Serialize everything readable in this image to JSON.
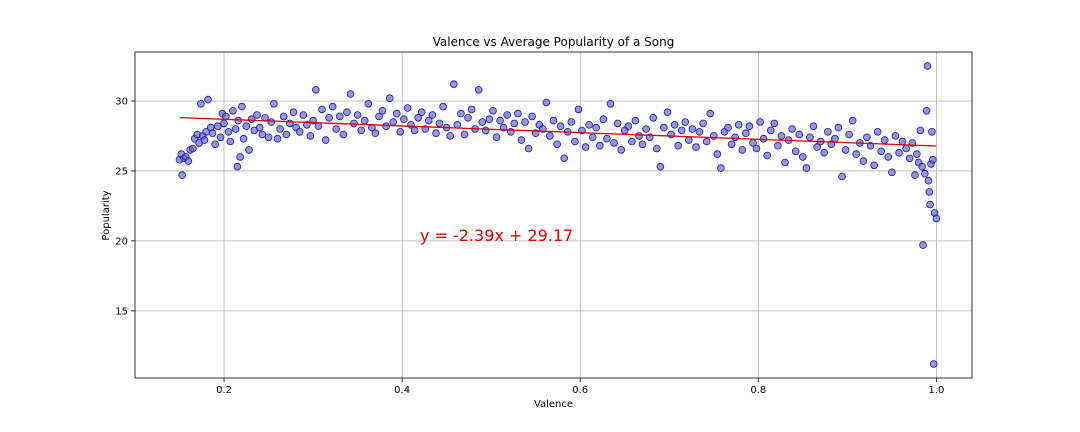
{
  "chart_data": {
    "type": "scatter",
    "title": "Valence vs Average Popularity of a Song",
    "xlabel": "Valence",
    "ylabel": "Popularity",
    "xlim": [
      0.1,
      1.04
    ],
    "ylim": [
      10.2,
      33.5
    ],
    "xticks": [
      0.2,
      0.4,
      0.6,
      0.8,
      1.0
    ],
    "xtick_labels": [
      "0.2",
      "0.4",
      "0.6",
      "0.8",
      "1.0"
    ],
    "yticks": [
      15,
      20,
      25,
      30
    ],
    "ytick_labels": [
      "15",
      "20",
      "25",
      "30"
    ],
    "grid": true,
    "marker_color": "#6666e0",
    "marker_edge_color": "#1a1a8c",
    "trend_color": "#e00000",
    "trendline": {
      "slope": -2.39,
      "intercept": 29.17,
      "x_range": [
        0.15,
        1.0
      ],
      "equation": "y = -2.39x + 29.17",
      "label_x": 0.42,
      "label_y": 20.0
    },
    "series": [
      {
        "points": [
          [
            0.15,
            25.8
          ],
          [
            0.152,
            26.2
          ],
          [
            0.153,
            24.7
          ],
          [
            0.155,
            25.9
          ],
          [
            0.157,
            26.0
          ],
          [
            0.16,
            25.7
          ],
          [
            0.162,
            26.5
          ],
          [
            0.165,
            26.6
          ],
          [
            0.167,
            27.3
          ],
          [
            0.17,
            27.6
          ],
          [
            0.172,
            27.0
          ],
          [
            0.174,
            29.8
          ],
          [
            0.176,
            27.5
          ],
          [
            0.178,
            27.2
          ],
          [
            0.18,
            27.8
          ],
          [
            0.182,
            30.1
          ],
          [
            0.185,
            28.1
          ],
          [
            0.187,
            27.7
          ],
          [
            0.19,
            26.9
          ],
          [
            0.193,
            28.2
          ],
          [
            0.196,
            27.4
          ],
          [
            0.198,
            29.1
          ],
          [
            0.2,
            28.4
          ],
          [
            0.202,
            28.9
          ],
          [
            0.205,
            27.8
          ],
          [
            0.207,
            27.1
          ],
          [
            0.21,
            29.3
          ],
          [
            0.213,
            28.0
          ],
          [
            0.215,
            25.3
          ],
          [
            0.216,
            28.6
          ],
          [
            0.218,
            26.0
          ],
          [
            0.22,
            29.6
          ],
          [
            0.222,
            27.3
          ],
          [
            0.225,
            28.2
          ],
          [
            0.228,
            26.5
          ],
          [
            0.231,
            28.7
          ],
          [
            0.234,
            27.9
          ],
          [
            0.237,
            29.0
          ],
          [
            0.24,
            28.1
          ],
          [
            0.243,
            27.6
          ],
          [
            0.246,
            28.8
          ],
          [
            0.25,
            27.4
          ],
          [
            0.253,
            28.5
          ],
          [
            0.256,
            29.8
          ],
          [
            0.26,
            27.3
          ],
          [
            0.263,
            28.0
          ],
          [
            0.267,
            28.9
          ],
          [
            0.27,
            27.6
          ],
          [
            0.274,
            28.4
          ],
          [
            0.278,
            29.2
          ],
          [
            0.281,
            28.1
          ],
          [
            0.285,
            27.8
          ],
          [
            0.289,
            29.0
          ],
          [
            0.293,
            28.3
          ],
          [
            0.297,
            27.5
          ],
          [
            0.3,
            28.6
          ],
          [
            0.303,
            30.8
          ],
          [
            0.306,
            28.2
          ],
          [
            0.31,
            29.4
          ],
          [
            0.314,
            27.2
          ],
          [
            0.318,
            28.8
          ],
          [
            0.322,
            29.6
          ],
          [
            0.326,
            28.0
          ],
          [
            0.33,
            28.9
          ],
          [
            0.334,
            27.6
          ],
          [
            0.338,
            29.2
          ],
          [
            0.342,
            30.5
          ],
          [
            0.346,
            28.4
          ],
          [
            0.35,
            29.0
          ],
          [
            0.354,
            27.9
          ],
          [
            0.358,
            28.6
          ],
          [
            0.362,
            29.8
          ],
          [
            0.366,
            28.1
          ],
          [
            0.37,
            27.7
          ],
          [
            0.374,
            28.9
          ],
          [
            0.378,
            29.3
          ],
          [
            0.382,
            28.2
          ],
          [
            0.386,
            30.2
          ],
          [
            0.39,
            28.5
          ],
          [
            0.394,
            29.1
          ],
          [
            0.398,
            27.8
          ],
          [
            0.402,
            28.7
          ],
          [
            0.406,
            29.5
          ],
          [
            0.41,
            28.3
          ],
          [
            0.414,
            27.9
          ],
          [
            0.418,
            28.8
          ],
          [
            0.422,
            29.2
          ],
          [
            0.426,
            28.0
          ],
          [
            0.43,
            28.6
          ],
          [
            0.434,
            29.0
          ],
          [
            0.438,
            27.7
          ],
          [
            0.442,
            28.4
          ],
          [
            0.446,
            29.6
          ],
          [
            0.45,
            28.1
          ],
          [
            0.454,
            27.5
          ],
          [
            0.458,
            31.2
          ],
          [
            0.462,
            28.3
          ],
          [
            0.466,
            29.1
          ],
          [
            0.47,
            27.6
          ],
          [
            0.474,
            28.8
          ],
          [
            0.478,
            29.4
          ],
          [
            0.482,
            28.0
          ],
          [
            0.486,
            30.8
          ],
          [
            0.49,
            28.5
          ],
          [
            0.494,
            27.9
          ],
          [
            0.498,
            28.7
          ],
          [
            0.502,
            29.3
          ],
          [
            0.506,
            27.4
          ],
          [
            0.51,
            28.6
          ],
          [
            0.514,
            28.1
          ],
          [
            0.518,
            29.0
          ],
          [
            0.522,
            27.8
          ],
          [
            0.526,
            28.4
          ],
          [
            0.53,
            29.1
          ],
          [
            0.534,
            27.2
          ],
          [
            0.538,
            28.5
          ],
          [
            0.542,
            26.6
          ],
          [
            0.546,
            28.9
          ],
          [
            0.55,
            27.7
          ],
          [
            0.554,
            28.3
          ],
          [
            0.558,
            28.0
          ],
          [
            0.562,
            29.9
          ],
          [
            0.566,
            27.5
          ],
          [
            0.57,
            28.6
          ],
          [
            0.574,
            26.9
          ],
          [
            0.578,
            28.2
          ],
          [
            0.582,
            25.9
          ],
          [
            0.586,
            27.8
          ],
          [
            0.59,
            28.5
          ],
          [
            0.594,
            27.1
          ],
          [
            0.598,
            29.4
          ],
          [
            0.602,
            27.9
          ],
          [
            0.606,
            26.7
          ],
          [
            0.61,
            28.3
          ],
          [
            0.614,
            27.4
          ],
          [
            0.618,
            28.1
          ],
          [
            0.622,
            26.8
          ],
          [
            0.626,
            28.7
          ],
          [
            0.63,
            27.3
          ],
          [
            0.634,
            29.8
          ],
          [
            0.638,
            27.0
          ],
          [
            0.642,
            28.4
          ],
          [
            0.646,
            26.5
          ],
          [
            0.65,
            27.9
          ],
          [
            0.654,
            28.2
          ],
          [
            0.658,
            27.1
          ],
          [
            0.662,
            28.6
          ],
          [
            0.666,
            27.5
          ],
          [
            0.67,
            26.9
          ],
          [
            0.674,
            28.0
          ],
          [
            0.678,
            27.4
          ],
          [
            0.682,
            28.8
          ],
          [
            0.686,
            26.6
          ],
          [
            0.69,
            25.3
          ],
          [
            0.694,
            28.1
          ],
          [
            0.698,
            29.2
          ],
          [
            0.702,
            27.6
          ],
          [
            0.706,
            28.3
          ],
          [
            0.71,
            26.8
          ],
          [
            0.714,
            27.9
          ],
          [
            0.718,
            28.5
          ],
          [
            0.722,
            27.2
          ],
          [
            0.726,
            28.0
          ],
          [
            0.73,
            26.7
          ],
          [
            0.734,
            27.8
          ],
          [
            0.738,
            28.4
          ],
          [
            0.742,
            27.1
          ],
          [
            0.746,
            29.1
          ],
          [
            0.75,
            27.5
          ],
          [
            0.754,
            26.2
          ],
          [
            0.758,
            25.2
          ],
          [
            0.762,
            27.8
          ],
          [
            0.766,
            28.1
          ],
          [
            0.77,
            26.9
          ],
          [
            0.774,
            27.4
          ],
          [
            0.778,
            28.3
          ],
          [
            0.782,
            26.5
          ],
          [
            0.786,
            27.7
          ],
          [
            0.79,
            28.2
          ],
          [
            0.794,
            27.0
          ],
          [
            0.798,
            26.6
          ],
          [
            0.802,
            28.5
          ],
          [
            0.806,
            27.3
          ],
          [
            0.81,
            26.1
          ],
          [
            0.814,
            27.9
          ],
          [
            0.818,
            28.4
          ],
          [
            0.822,
            26.8
          ],
          [
            0.826,
            27.5
          ],
          [
            0.83,
            25.6
          ],
          [
            0.834,
            27.2
          ],
          [
            0.838,
            28.0
          ],
          [
            0.842,
            26.4
          ],
          [
            0.846,
            27.6
          ],
          [
            0.85,
            26.0
          ],
          [
            0.854,
            25.2
          ],
          [
            0.858,
            27.4
          ],
          [
            0.862,
            28.2
          ],
          [
            0.866,
            26.7
          ],
          [
            0.87,
            27.1
          ],
          [
            0.874,
            26.3
          ],
          [
            0.878,
            27.8
          ],
          [
            0.882,
            26.9
          ],
          [
            0.886,
            27.3
          ],
          [
            0.89,
            28.1
          ],
          [
            0.894,
            24.6
          ],
          [
            0.898,
            26.5
          ],
          [
            0.902,
            27.6
          ],
          [
            0.906,
            28.6
          ],
          [
            0.91,
            26.2
          ],
          [
            0.914,
            27.0
          ],
          [
            0.918,
            25.7
          ],
          [
            0.922,
            27.4
          ],
          [
            0.926,
            26.8
          ],
          [
            0.93,
            25.4
          ],
          [
            0.934,
            27.8
          ],
          [
            0.938,
            26.4
          ],
          [
            0.942,
            27.2
          ],
          [
            0.946,
            26.0
          ],
          [
            0.95,
            24.9
          ],
          [
            0.954,
            27.5
          ],
          [
            0.958,
            26.3
          ],
          [
            0.962,
            27.1
          ],
          [
            0.966,
            26.6
          ],
          [
            0.97,
            25.9
          ],
          [
            0.973,
            27.0
          ],
          [
            0.976,
            24.7
          ],
          [
            0.978,
            26.2
          ],
          [
            0.98,
            25.6
          ],
          [
            0.982,
            27.9
          ],
          [
            0.984,
            25.3
          ],
          [
            0.985,
            19.7
          ],
          [
            0.987,
            24.8
          ],
          [
            0.989,
            29.3
          ],
          [
            0.99,
            32.5
          ],
          [
            0.991,
            24.3
          ],
          [
            0.992,
            23.5
          ],
          [
            0.993,
            22.6
          ],
          [
            0.994,
            25.5
          ],
          [
            0.995,
            27.8
          ],
          [
            0.996,
            25.8
          ],
          [
            0.997,
            11.2
          ],
          [
            0.998,
            22.0
          ],
          [
            1.0,
            21.6
          ]
        ]
      }
    ]
  }
}
